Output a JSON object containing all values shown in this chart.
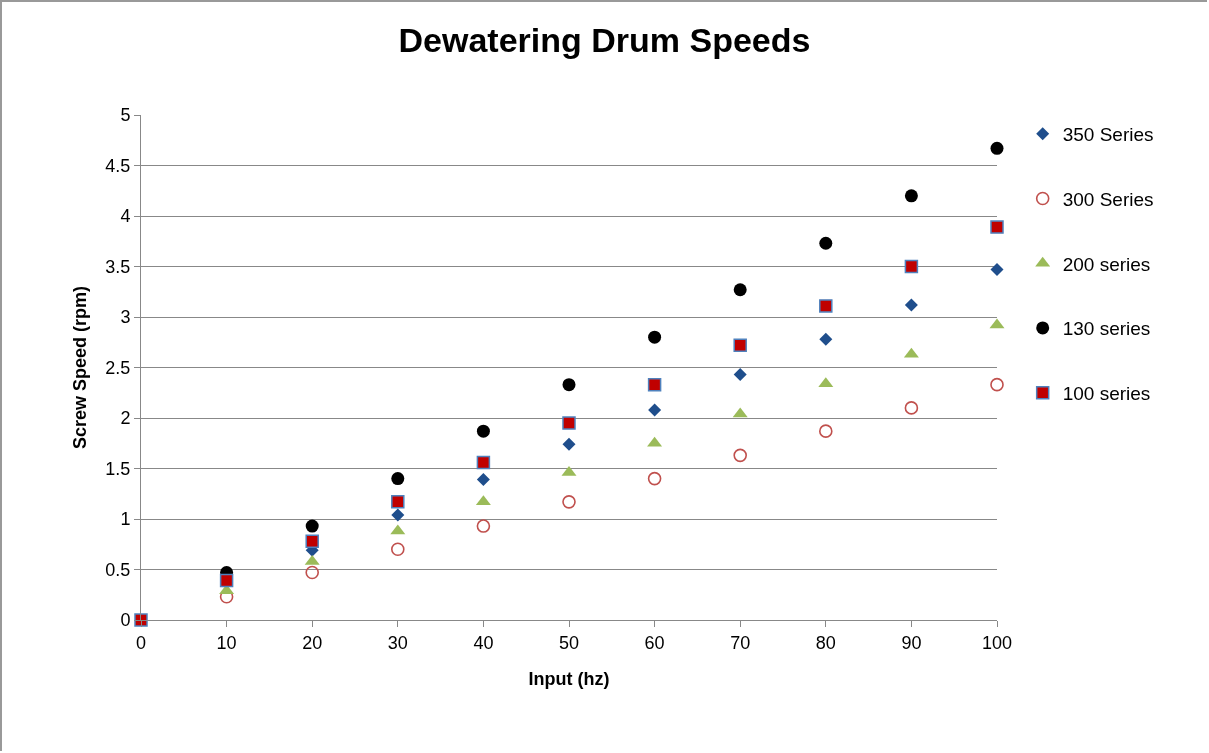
{
  "chart_data": {
    "type": "scatter",
    "title": "Dewatering Drum Speeds",
    "xlabel": "Input (hz)",
    "ylabel": "Screw Speed (rpm)",
    "x": [
      0,
      10,
      20,
      30,
      40,
      50,
      60,
      70,
      80,
      90,
      100
    ],
    "series": [
      {
        "name": "350 Series",
        "color": "#1f4e8c",
        "marker": "diamond",
        "values": [
          null,
          null,
          0.69,
          1.04,
          1.39,
          1.74,
          2.08,
          2.43,
          2.78,
          3.12,
          3.47
        ]
      },
      {
        "name": "300 Series",
        "color": "#c0504d",
        "marker": "circle-open",
        "values": [
          null,
          0.23,
          0.47,
          0.7,
          0.93,
          1.17,
          1.4,
          1.63,
          1.87,
          2.1,
          2.33
        ]
      },
      {
        "name": "200 series",
        "color": "#9bbb59",
        "marker": "triangle",
        "values": [
          null,
          0.29,
          0.58,
          0.88,
          1.17,
          1.46,
          1.75,
          2.04,
          2.34,
          2.63,
          2.92
        ]
      },
      {
        "name": "130 series",
        "color": "#000000",
        "marker": "circle",
        "values": [
          null,
          0.47,
          0.93,
          1.4,
          1.87,
          2.33,
          2.8,
          3.27,
          3.73,
          4.2,
          4.67
        ]
      },
      {
        "name": "100 series",
        "color": "#c00000",
        "marker": "square",
        "values": [
          0,
          0.39,
          0.78,
          1.17,
          1.56,
          1.95,
          2.33,
          2.72,
          3.11,
          3.5,
          3.89
        ]
      }
    ],
    "xlim": [
      0,
      100
    ],
    "xticks": [
      0,
      10,
      20,
      30,
      40,
      50,
      60,
      70,
      80,
      90,
      100
    ],
    "ylim": [
      0,
      5
    ],
    "yticks": [
      0,
      0.5,
      1,
      1.5,
      2,
      2.5,
      3,
      3.5,
      4,
      4.5,
      5
    ],
    "grid": "y",
    "legend": "right"
  }
}
